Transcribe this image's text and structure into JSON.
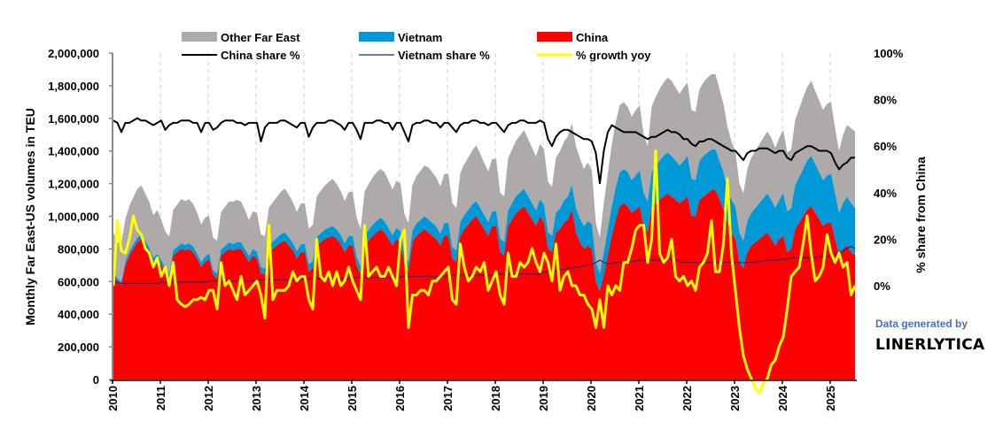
{
  "chart_data": {
    "type": "area",
    "title": "",
    "start": "2010-01",
    "frequency": "monthly",
    "xlabel": "",
    "ylabel": "Monthly Far East-US volumes in TEU",
    "ylabel_right": "% share from China",
    "ylim": [
      0,
      2000000
    ],
    "ylim_right": [
      -40,
      100
    ],
    "yticks": [
      "0",
      "200,000",
      "400,000",
      "600,000",
      "800,000",
      "1,000,000",
      "1,200,000",
      "1,400,000",
      "1,600,000",
      "1,800,000",
      "2,000,000"
    ],
    "yticks_right": [
      "0%",
      "20%",
      "40%",
      "60%",
      "80%",
      "100%"
    ],
    "xticks": [
      "2010",
      "2011",
      "2012",
      "2013",
      "2014",
      "2015",
      "2016",
      "2017",
      "2018",
      "2019",
      "2020",
      "2021",
      "2022",
      "2023",
      "2024",
      "2025"
    ],
    "grid": "vertical-dashed-at-years",
    "legend_position": "top",
    "colors": {
      "other": "#aeaaaa",
      "vietnam": "#0099d8",
      "china": "#ff0000",
      "china_share": "#000000",
      "vietnam_share": "#1f2f6b",
      "growth": "#ffff00"
    },
    "legend": [
      {
        "key": "other",
        "label": "Other Far East",
        "kind": "area"
      },
      {
        "key": "vietnam",
        "label": "Vietnam",
        "kind": "area"
      },
      {
        "key": "china",
        "label": "China",
        "kind": "area"
      },
      {
        "key": "china_share",
        "label": "China share %",
        "kind": "line"
      },
      {
        "key": "vietnam_share",
        "label": "Vietnam share %",
        "kind": "line"
      },
      {
        "key": "growth",
        "label": "% growth yoy",
        "kind": "line"
      }
    ],
    "series": [
      {
        "name": "China",
        "unit": "TEU (thousands)",
        "axis": "left",
        "values": [
          640,
          600,
          580,
          700,
          760,
          800,
          840,
          860,
          820,
          780,
          720,
          740,
          700,
          660,
          620,
          760,
          780,
          800,
          790,
          800,
          780,
          740,
          690,
          720,
          740,
          640,
          620,
          760,
          780,
          800,
          790,
          800,
          800,
          760,
          720,
          760,
          740,
          650,
          640,
          780,
          800,
          820,
          840,
          850,
          820,
          790,
          740,
          780,
          780,
          660,
          680,
          820,
          840,
          860,
          870,
          880,
          860,
          830,
          780,
          820,
          820,
          700,
          640,
          820,
          850,
          880,
          900,
          920,
          900,
          860,
          820,
          860,
          840,
          700,
          660,
          840,
          880,
          900,
          920,
          900,
          880,
          860,
          820,
          880,
          880,
          740,
          720,
          880,
          920,
          950,
          980,
          1000,
          960,
          920,
          880,
          940,
          940,
          780,
          760,
          940,
          980,
          1020,
          1040,
          1060,
          1020,
          980,
          940,
          1000,
          960,
          800,
          780,
          900,
          920,
          960,
          980,
          1040,
          900,
          840,
          800,
          820,
          800,
          600,
          540,
          640,
          760,
          880,
          980,
          1060,
          1080,
          1060,
          1020,
          1040,
          1060,
          940,
          900,
          1050,
          1080,
          1100,
          1120,
          1140,
          1120,
          1100,
          1080,
          1100,
          1120,
          1000,
          1000,
          1100,
          1120,
          1140,
          1160,
          1160,
          1100,
          1040,
          960,
          900,
          860,
          720,
          680,
          780,
          820,
          840,
          860,
          880,
          900,
          860,
          820,
          860,
          880,
          780,
          800,
          920,
          960,
          1000,
          1040,
          1060,
          1020,
          980,
          940,
          960,
          960,
          860,
          760,
          800,
          820,
          780,
          760
        ]
      },
      {
        "name": "Vietnam",
        "unit": "TEU (thousands)",
        "axis": "left",
        "values": [
          20,
          20,
          20,
          22,
          24,
          26,
          28,
          28,
          28,
          28,
          26,
          28,
          30,
          28,
          26,
          30,
          32,
          34,
          34,
          34,
          34,
          32,
          30,
          32,
          34,
          30,
          30,
          36,
          38,
          40,
          40,
          40,
          40,
          38,
          36,
          40,
          42,
          38,
          38,
          44,
          46,
          48,
          50,
          50,
          50,
          48,
          46,
          48,
          50,
          46,
          46,
          52,
          56,
          58,
          60,
          60,
          58,
          56,
          54,
          58,
          60,
          54,
          52,
          62,
          66,
          68,
          70,
          70,
          70,
          68,
          64,
          68,
          70,
          62,
          60,
          72,
          76,
          78,
          80,
          80,
          80,
          76,
          72,
          78,
          80,
          72,
          70,
          84,
          88,
          90,
          92,
          94,
          92,
          88,
          84,
          90,
          92,
          84,
          82,
          96,
          100,
          104,
          106,
          108,
          104,
          100,
          96,
          104,
          110,
          102,
          100,
          120,
          128,
          136,
          142,
          150,
          150,
          146,
          140,
          150,
          150,
          120,
          110,
          140,
          160,
          180,
          200,
          210,
          210,
          210,
          200,
          210,
          220,
          200,
          190,
          220,
          230,
          240,
          250,
          250,
          250,
          240,
          230,
          240,
          250,
          230,
          220,
          240,
          250,
          250,
          250,
          250,
          240,
          230,
          210,
          200,
          200,
          180,
          170,
          190,
          200,
          210,
          220,
          230,
          240,
          240,
          230,
          240,
          260,
          250,
          250,
          270,
          280,
          290,
          300,
          310,
          300,
          290,
          280,
          290,
          300,
          280,
          260,
          280,
          300,
          300,
          290
        ]
      },
      {
        "name": "Other Far East",
        "unit": "TEU (thousands)",
        "axis": "left",
        "values": [
          240,
          220,
          240,
          260,
          280,
          290,
          300,
          300,
          290,
          280,
          260,
          270,
          250,
          220,
          230,
          250,
          260,
          270,
          270,
          270,
          260,
          250,
          230,
          240,
          230,
          200,
          200,
          230,
          240,
          250,
          260,
          260,
          250,
          240,
          220,
          230,
          240,
          200,
          200,
          230,
          240,
          250,
          260,
          270,
          260,
          250,
          240,
          250,
          250,
          220,
          220,
          250,
          260,
          270,
          280,
          290,
          280,
          270,
          260,
          270,
          270,
          240,
          230,
          270,
          280,
          290,
          300,
          300,
          300,
          290,
          280,
          290,
          290,
          250,
          240,
          280,
          290,
          300,
          310,
          320,
          310,
          300,
          290,
          300,
          300,
          270,
          260,
          300,
          310,
          320,
          330,
          340,
          330,
          320,
          310,
          320,
          320,
          280,
          280,
          320,
          330,
          340,
          350,
          360,
          350,
          340,
          330,
          340,
          340,
          310,
          300,
          340,
          350,
          360,
          370,
          380,
          380,
          370,
          350,
          360,
          330,
          240,
          220,
          300,
          340,
          380,
          400,
          410,
          410,
          400,
          390,
          400,
          400,
          360,
          340,
          400,
          420,
          440,
          450,
          460,
          460,
          450,
          440,
          450,
          450,
          420,
          420,
          440,
          450,
          460,
          460,
          460,
          440,
          420,
          380,
          360,
          340,
          300,
          290,
          320,
          340,
          350,
          360,
          370,
          380,
          380,
          370,
          380,
          390,
          360,
          360,
          400,
          420,
          440,
          450,
          460,
          450,
          440,
          430,
          440,
          440,
          400,
          380,
          420,
          440,
          460,
          470
        ]
      },
      {
        "name": "China share %",
        "unit": "%",
        "axis": "right",
        "values": [
          71,
          70,
          66,
          70,
          70,
          71,
          72,
          71,
          71,
          70,
          69,
          70,
          71,
          67,
          69,
          70,
          70,
          71,
          71,
          71,
          70,
          70,
          66,
          70,
          70,
          67,
          68,
          70,
          71,
          71,
          71,
          70,
          70,
          69,
          70,
          70,
          70,
          62,
          68,
          70,
          70,
          70,
          71,
          71,
          70,
          69,
          68,
          70,
          70,
          64,
          68,
          70,
          70,
          70,
          71,
          71,
          70,
          69,
          67,
          70,
          70,
          67,
          63,
          70,
          70,
          70,
          71,
          71,
          70,
          70,
          67,
          70,
          70,
          66,
          62,
          69,
          70,
          70,
          71,
          71,
          70,
          70,
          68,
          70,
          70,
          68,
          66,
          69,
          70,
          70,
          71,
          71,
          70,
          70,
          69,
          70,
          70,
          68,
          66,
          69,
          70,
          70,
          71,
          71,
          70,
          70,
          70,
          71,
          70,
          63,
          60,
          64,
          66,
          67,
          67,
          66,
          65,
          64,
          63,
          63,
          62,
          57,
          44,
          58,
          66,
          69,
          68,
          67,
          66,
          66,
          66,
          66,
          65,
          64,
          63,
          64,
          64,
          65,
          66,
          67,
          66,
          66,
          65,
          63,
          63,
          61,
          60,
          62,
          62,
          63,
          63,
          62,
          61,
          60,
          59,
          58,
          58,
          56,
          54,
          57,
          58,
          58,
          59,
          59,
          59,
          58,
          57,
          58,
          58,
          55,
          54,
          57,
          58,
          59,
          60,
          60,
          59,
          58,
          58,
          58,
          57,
          53,
          50,
          52,
          53,
          55,
          55
        ]
      },
      {
        "name": "Vietnam share %",
        "unit": "%",
        "axis": "right",
        "values": [
          2,
          1.5,
          1,
          1,
          1,
          1,
          1,
          1,
          1,
          1,
          1,
          1,
          1.5,
          1.5,
          1.5,
          1.5,
          1.5,
          1.5,
          1.5,
          1.5,
          1.5,
          1.5,
          1.5,
          1.5,
          2,
          2,
          2,
          2,
          2,
          2,
          2,
          2,
          2,
          2,
          2,
          2,
          2.5,
          2.5,
          2.5,
          2.5,
          2.5,
          2.5,
          2.5,
          2.5,
          2.5,
          2.5,
          2.5,
          2.5,
          3,
          3,
          3,
          3,
          3,
          3,
          3,
          3,
          3,
          3,
          3,
          3,
          3.5,
          3.5,
          3.5,
          3.5,
          3.5,
          3.5,
          3.5,
          3.5,
          3.5,
          3.5,
          3.5,
          3.5,
          4,
          4,
          4,
          4,
          4,
          4,
          4,
          4,
          4,
          4,
          4,
          4,
          4.5,
          4.5,
          4.5,
          4.5,
          4.5,
          4.5,
          4.5,
          4.5,
          4.5,
          4.5,
          4.5,
          4.5,
          5,
          5,
          5,
          5,
          5,
          5,
          5,
          5,
          5,
          5,
          5,
          5,
          6,
          6,
          6,
          6.5,
          7,
          7,
          7.5,
          7.5,
          8,
          8,
          8.5,
          9,
          9,
          10,
          11,
          10,
          9.5,
          9.5,
          10,
          10,
          10,
          10,
          10.5,
          10.5,
          11,
          11,
          11,
          11,
          11,
          11,
          11.5,
          11.5,
          11.5,
          11,
          10.5,
          10,
          10,
          10,
          10,
          10,
          10,
          10,
          10,
          10,
          10,
          10,
          10,
          10,
          10,
          10,
          10,
          10,
          10,
          10,
          10.5,
          10.5,
          11,
          11,
          11,
          11,
          11.5,
          11.5,
          12,
          12,
          12,
          12,
          12,
          12,
          12,
          12.5,
          12.5,
          12.5,
          13,
          13.5,
          14,
          15,
          16,
          17,
          16
        ]
      },
      {
        "name": "% growth yoy",
        "unit": "%",
        "axis": "right",
        "values": [
          0,
          28,
          15,
          14,
          20,
          30,
          24,
          22,
          16,
          14,
          8,
          12,
          4,
          8,
          0,
          10,
          -6,
          -8,
          -9,
          -8,
          -6,
          -6,
          -5,
          -6,
          -2,
          -2,
          -10,
          10,
          0,
          2,
          -2,
          -6,
          4,
          -4,
          -2,
          0,
          2,
          -4,
          -14,
          26,
          -6,
          -2,
          -2,
          -2,
          0,
          6,
          2,
          4,
          4,
          -6,
          -10,
          20,
          4,
          2,
          6,
          0,
          6,
          0,
          2,
          8,
          2,
          -2,
          -6,
          26,
          4,
          6,
          8,
          4,
          4,
          8,
          4,
          0,
          20,
          24,
          -18,
          -4,
          -4,
          -2,
          -2,
          -4,
          2,
          2,
          4,
          6,
          8,
          -6,
          -8,
          18,
          8,
          2,
          4,
          8,
          6,
          10,
          -2,
          2,
          6,
          -4,
          -8,
          14,
          4,
          4,
          10,
          8,
          10,
          16,
          10,
          6,
          14,
          10,
          2,
          18,
          -2,
          4,
          6,
          0,
          0,
          -4,
          -4,
          -8,
          -10,
          -18,
          -6,
          -18,
          0,
          -4,
          0,
          -2,
          10,
          10,
          16,
          24,
          26,
          26,
          10,
          20,
          58,
          14,
          10,
          12,
          20,
          4,
          2,
          4,
          0,
          2,
          -2,
          8,
          10,
          14,
          28,
          6,
          6,
          18,
          46,
          14,
          -2,
          -18,
          -30,
          -36,
          -40,
          -44,
          -46,
          -42,
          -40,
          -34,
          -32,
          -26,
          -22,
          -10,
          4,
          6,
          8,
          18,
          30,
          14,
          2,
          4,
          8,
          22,
          14,
          10,
          14,
          8,
          10,
          -4,
          0
        ]
      }
    ]
  },
  "credit": {
    "line1": "Data generated by",
    "line2": "LINERLYTICA"
  }
}
